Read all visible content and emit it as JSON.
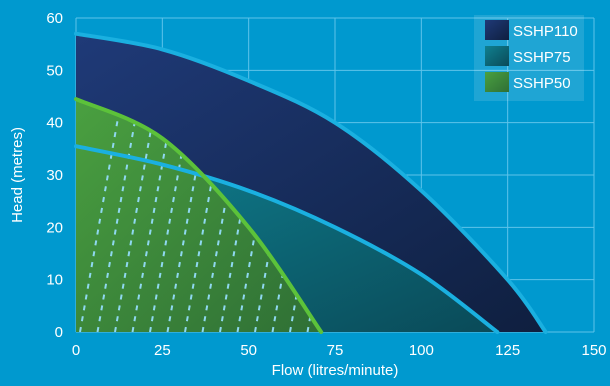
{
  "chart_data": {
    "type": "area",
    "xlabel": "Flow (litres/minute)",
    "ylabel": "Head (metres)",
    "xlim": [
      0,
      150
    ],
    "ylim": [
      0,
      60
    ],
    "x_ticks": [
      0,
      25,
      50,
      75,
      100,
      125,
      150
    ],
    "y_ticks": [
      0,
      10,
      20,
      30,
      40,
      50,
      60
    ],
    "grid": true,
    "legend_position": "top-right",
    "series": [
      {
        "name": "SSHP110",
        "fill_color": "#1a2d5c",
        "line_color": "#1ab0e0",
        "x": [
          0,
          25,
          50,
          75,
          100,
          125,
          136
        ],
        "y": [
          57,
          54,
          48,
          40,
          27,
          10,
          0
        ]
      },
      {
        "name": "SSHP75",
        "fill_color": "#0a5f70",
        "line_color": "#1ab0e0",
        "x": [
          0,
          25,
          50,
          75,
          100,
          122
        ],
        "y": [
          35.5,
          32,
          27,
          20,
          11,
          0
        ]
      },
      {
        "name": "SSHP50",
        "fill_color": "#3f8a3a",
        "line_color": "#5cc23a",
        "x": [
          0,
          25,
          50,
          71
        ],
        "y": [
          44.5,
          37,
          20,
          0
        ]
      }
    ]
  }
}
